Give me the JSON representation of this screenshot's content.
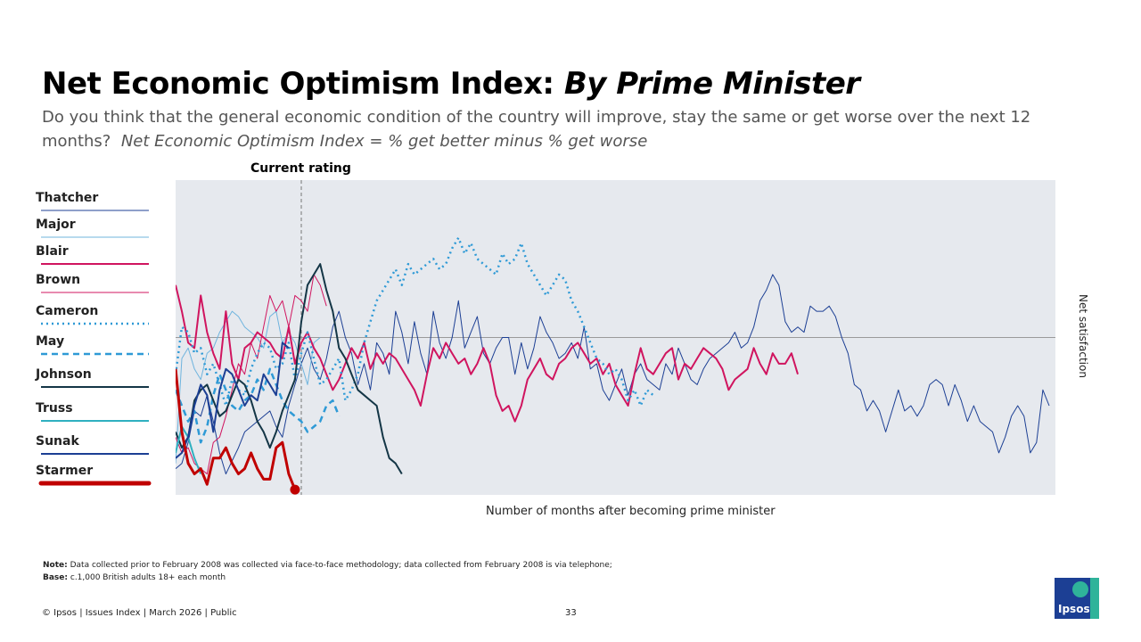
{
  "title": {
    "main": "Net Economic Optimism Index: ",
    "italic": "By Prime Minister"
  },
  "subtitle": {
    "question": "Do you think that the general economic condition of the country will improve, stay the same or get worse over the next 12 months?",
    "definition": "Net Economic Optimism Index = % get better minus % get worse"
  },
  "current_rating_label": "Current rating",
  "legend": [
    {
      "name": "Thatcher",
      "color": "#1c3f94",
      "style": "thin"
    },
    {
      "name": "Major",
      "color": "#6fb4de",
      "style": "thin"
    },
    {
      "name": "Blair",
      "color": "#d0155f",
      "style": "medium"
    },
    {
      "name": "Brown",
      "color": "#d0155f",
      "style": "thin"
    },
    {
      "name": "Cameron",
      "color": "#2f9ad6",
      "style": "dotted"
    },
    {
      "name": "May",
      "color": "#2f9ad6",
      "style": "dashed"
    },
    {
      "name": "Johnson",
      "color": "#143646",
      "style": "medium"
    },
    {
      "name": "Truss",
      "color": "#2fb0c0",
      "style": "medium"
    },
    {
      "name": "Sunak",
      "color": "#1c3f94",
      "style": "medium"
    },
    {
      "name": "Starmer",
      "color": "#c00000",
      "style": "thick"
    }
  ],
  "chart_data": {
    "type": "line",
    "title": "Net Economic Optimism Index: By Prime Minister",
    "xlabel": "Number of months after becoming prime minister",
    "ylabel": "Net satisfaction",
    "xlim": [
      0,
      140
    ],
    "ylim": [
      -60,
      60
    ],
    "reference_line_y": 0,
    "current_rating_x": 20,
    "grid": false,
    "series": [
      {
        "name": "Thatcher",
        "values": [
          -50,
          -48,
          -40,
          -28,
          -30,
          -22,
          -32,
          -44,
          -52,
          -47,
          -42,
          -36,
          -34,
          -32,
          -30,
          -28,
          -34,
          -38,
          -26,
          -18,
          -10,
          -4,
          -12,
          -16,
          -8,
          4,
          10,
          0,
          -6,
          -18,
          -10,
          -20,
          -2,
          -6,
          -14,
          10,
          2,
          -10,
          6,
          -6,
          -14,
          10,
          -2,
          -8,
          0,
          14,
          -4,
          2,
          8,
          -6,
          -10,
          -4,
          0,
          0,
          -14,
          -2,
          -12,
          -4,
          8,
          2,
          -2,
          -8,
          -6,
          -2,
          -8,
          4,
          -12,
          -10,
          -20,
          -24,
          -18,
          -12,
          -22,
          -14,
          -10,
          -16,
          -18,
          -20,
          -10,
          -14,
          -4,
          -10,
          -16,
          -18,
          -12,
          -8,
          -6,
          -4,
          -2,
          2,
          -4,
          -2,
          4,
          14,
          18,
          24,
          20,
          6,
          2,
          4,
          2,
          12,
          10,
          10,
          12,
          8,
          0,
          -6,
          -18,
          -20,
          -28,
          -24,
          -28,
          -36,
          -28,
          -20,
          -28,
          -26,
          -30,
          -26,
          -18,
          -16,
          -18,
          -26,
          -18,
          -24,
          -32,
          -26,
          -32,
          -34,
          -36,
          -44,
          -38,
          -30,
          -26,
          -30,
          -44,
          -40,
          -20,
          -26
        ]
      },
      {
        "name": "Major",
        "values": [
          -48,
          -8,
          -4,
          -12,
          -16,
          -6,
          -4,
          2,
          6,
          10,
          8,
          4,
          2,
          0,
          -4,
          8,
          10,
          -2,
          2,
          -2,
          -10,
          -18,
          -2,
          0
        ]
      },
      {
        "name": "Blair",
        "values": [
          20,
          10,
          -2,
          -4,
          16,
          2,
          -6,
          -12,
          10,
          -10,
          -16,
          -4,
          -2,
          2,
          0,
          -2,
          -6,
          -8,
          4,
          -10,
          -2,
          2,
          -4,
          -8,
          -14,
          -20,
          -16,
          -10,
          -4,
          -8,
          -2,
          -12,
          -6,
          -10,
          -6,
          -8,
          -12,
          -16,
          -20,
          -26,
          -14,
          -4,
          -8,
          -2,
          -6,
          -10,
          -8,
          -14,
          -10,
          -4,
          -10,
          -22,
          -28,
          -26,
          -32,
          -26,
          -16,
          -12,
          -8,
          -14,
          -16,
          -10,
          -8,
          -4,
          -2,
          -6,
          -10,
          -8,
          -14,
          -10,
          -18,
          -22,
          -26,
          -14,
          -4,
          -12,
          -14,
          -10,
          -6,
          -4,
          -16,
          -10,
          -12,
          -8,
          -4,
          -6,
          -8,
          -12,
          -20,
          -16,
          -14,
          -12,
          -4,
          -10,
          -14,
          -6,
          -10,
          -10,
          -6,
          -14
        ]
      },
      {
        "name": "Brown",
        "values": [
          -38,
          -44,
          -42,
          -48,
          -50,
          -52,
          -40,
          -38,
          -30,
          -20,
          -10,
          -14,
          -2,
          -8,
          4,
          16,
          10,
          14,
          4,
          16,
          14,
          10,
          24,
          20,
          12
        ]
      },
      {
        "name": "Cameron",
        "values": [
          -14,
          4,
          2,
          -6,
          -4,
          -14,
          -10,
          -18,
          -26,
          -16,
          -20,
          -22,
          -12,
          -6,
          -2,
          -4,
          -12,
          -10,
          -2,
          -16,
          -6,
          2,
          -8,
          -18,
          -16,
          -12,
          -8,
          -24,
          -20,
          -14,
          -2,
          6,
          14,
          18,
          22,
          26,
          20,
          28,
          24,
          26,
          28,
          30,
          26,
          28,
          34,
          38,
          32,
          36,
          30,
          28,
          26,
          24,
          32,
          28,
          30,
          36,
          28,
          24,
          20,
          16,
          20,
          24,
          22,
          14,
          10,
          4,
          -2,
          -8,
          -10,
          -14,
          -12,
          -16,
          -24,
          -20,
          -26,
          -20,
          -22
        ]
      },
      {
        "name": "May",
        "values": [
          -20,
          -26,
          -32,
          -28,
          -40,
          -34,
          -22,
          -14,
          -20,
          -26,
          -28,
          -24,
          -22,
          -16,
          -20,
          -12,
          -18,
          -24,
          -28,
          -30,
          -32,
          -36,
          -34,
          -32,
          -26,
          -24,
          -30
        ]
      },
      {
        "name": "Johnson",
        "values": [
          -36,
          -42,
          -38,
          -24,
          -20,
          -18,
          -24,
          -30,
          -28,
          -22,
          -16,
          -18,
          -24,
          -32,
          -36,
          -42,
          -36,
          -28,
          -22,
          -16,
          6,
          20,
          24,
          28,
          18,
          10,
          -4,
          -8,
          -14,
          -20,
          -22,
          -24,
          -26,
          -38,
          -46,
          -48,
          -52
        ]
      },
      {
        "name": "Truss",
        "values": [
          -44,
          -34,
          -38,
          -46,
          -52
        ]
      },
      {
        "name": "Sunak",
        "values": [
          -46,
          -44,
          -38,
          -26,
          -18,
          -22,
          -36,
          -20,
          -12,
          -14,
          -20,
          -26,
          -22,
          -24,
          -14,
          -18,
          -22,
          -2,
          -4
        ]
      },
      {
        "name": "Starmer",
        "values": [
          -12,
          -36,
          -48,
          -52,
          -50,
          -56,
          -46,
          -46,
          -42,
          -48,
          -52,
          -50,
          -44,
          -50,
          -54,
          -54,
          -42,
          -40,
          -52,
          -58
        ]
      }
    ]
  },
  "note_label": "Note:",
  "note_text": "Data collected prior to February 2008 was collected via face-to-face methodology; data collected from February 2008 is via telephone;",
  "base_label": "Base:",
  "base_text": "c.1,000 British adults 18+ each month",
  "footer": "© Ipsos | Issues Index | March 2026 | Public",
  "page_number": "33",
  "logo_text": "Ipsos"
}
